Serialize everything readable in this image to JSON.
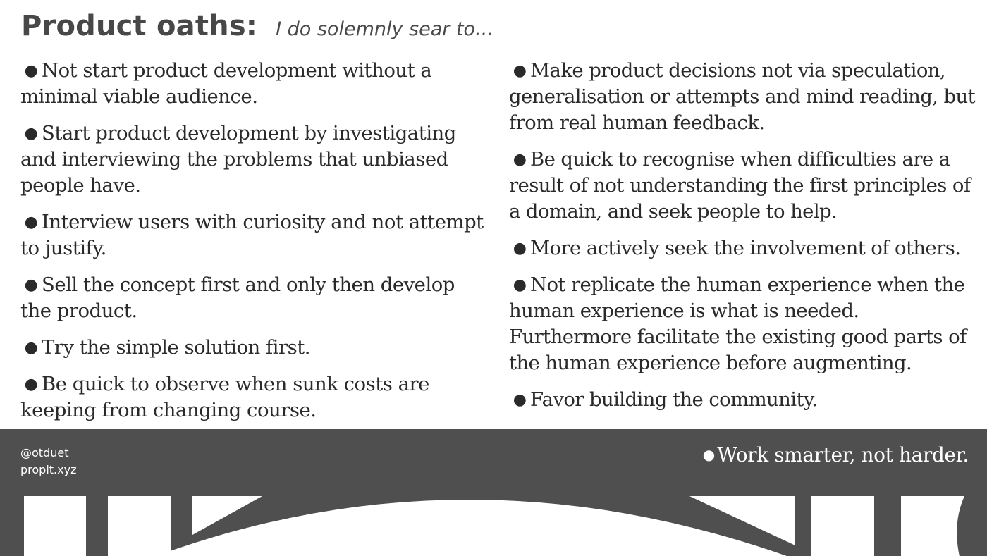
{
  "header": {
    "title": "Product oaths:",
    "subtitle": "I do solemnly sear to..."
  },
  "left_column": [
    "Not start product development without a minimal viable audience.",
    "Start product development by investigating and interviewing the problems that unbiased people have.",
    "Interview users with curiosity and not attempt to justify.",
    "Sell the concept first and only then develop the product.",
    "Try the simple solution first.",
    "Be quick to observe when sunk costs are keeping from changing course."
  ],
  "right_column": [
    "Make product decisions not via speculation, generalisation or attempts and mind reading, but from real human feedback.",
    "Be quick to recognise when difficulties are a result of not understanding the first principles of a domain, and seek people to help.",
    "More actively seek the involvement of others.",
    "Not replicate the human experience when the human experience is what is needed. Furthermore facilitate the existing good parts of the human experience before augmenting.",
    "Favor building the community."
  ],
  "footer": {
    "handle": "@otduet",
    "site": "propit.xyz",
    "last_oath": "Work smarter, not harder."
  },
  "bullet_glyph": "●",
  "colors": {
    "footer_bg": "#4f4f4f",
    "title": "#484848",
    "body_text": "#2a2a2a"
  }
}
